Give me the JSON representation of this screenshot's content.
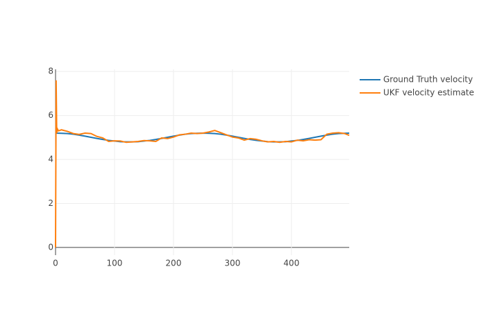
{
  "chart_data": {
    "type": "line",
    "xlim": [
      0,
      498
    ],
    "ylim": [
      -0.35,
      8.1
    ],
    "xticks": [
      0,
      100,
      200,
      300,
      400
    ],
    "yticks": [
      0,
      2,
      4,
      6,
      8
    ],
    "grid": true,
    "legend": "right",
    "series": [
      {
        "name": "Ground Truth velocity",
        "color": "#1f77b4",
        "x": [
          0,
          10,
          20,
          30,
          40,
          50,
          60,
          70,
          80,
          90,
          100,
          110,
          120,
          130,
          140,
          150,
          160,
          170,
          180,
          190,
          200,
          210,
          220,
          230,
          240,
          250,
          260,
          270,
          280,
          290,
          300,
          310,
          320,
          330,
          340,
          350,
          360,
          370,
          380,
          390,
          400,
          410,
          420,
          430,
          440,
          450,
          460,
          470,
          480,
          490,
          498
        ],
        "values": [
          5.2,
          5.19,
          5.18,
          5.15,
          5.11,
          5.06,
          5.01,
          4.96,
          4.91,
          4.87,
          4.84,
          4.81,
          4.8,
          4.8,
          4.81,
          4.84,
          4.87,
          4.91,
          4.96,
          5.01,
          5.06,
          5.11,
          5.15,
          5.18,
          5.19,
          5.2,
          5.19,
          5.18,
          5.15,
          5.11,
          5.06,
          5.01,
          4.96,
          4.91,
          4.87,
          4.84,
          4.81,
          4.8,
          4.8,
          4.81,
          4.84,
          4.87,
          4.91,
          4.96,
          5.01,
          5.06,
          5.11,
          5.15,
          5.18,
          5.19,
          5.2
        ]
      },
      {
        "name": "UKF velocity estimate",
        "color": "#ff7f0e",
        "x": [
          0,
          1,
          2,
          3,
          5,
          10,
          20,
          30,
          40,
          50,
          60,
          70,
          80,
          90,
          100,
          110,
          120,
          130,
          140,
          150,
          160,
          170,
          180,
          190,
          200,
          210,
          220,
          230,
          240,
          250,
          260,
          270,
          280,
          290,
          300,
          310,
          320,
          330,
          340,
          350,
          360,
          370,
          380,
          390,
          400,
          410,
          420,
          430,
          440,
          450,
          460,
          470,
          480,
          490,
          498
        ],
        "values": [
          0,
          7.6,
          5.2,
          5.4,
          5.3,
          5.35,
          5.28,
          5.18,
          5.14,
          5.2,
          5.18,
          5.05,
          4.98,
          4.82,
          4.85,
          4.84,
          4.78,
          4.8,
          4.82,
          4.86,
          4.85,
          4.82,
          4.98,
          4.95,
          5.02,
          5.12,
          5.15,
          5.2,
          5.18,
          5.2,
          5.25,
          5.32,
          5.22,
          5.12,
          5.02,
          4.98,
          4.88,
          4.95,
          4.92,
          4.85,
          4.8,
          4.82,
          4.78,
          4.82,
          4.8,
          4.88,
          4.85,
          4.9,
          4.88,
          4.9,
          5.15,
          5.2,
          5.22,
          5.18,
          5.1
        ]
      }
    ]
  }
}
